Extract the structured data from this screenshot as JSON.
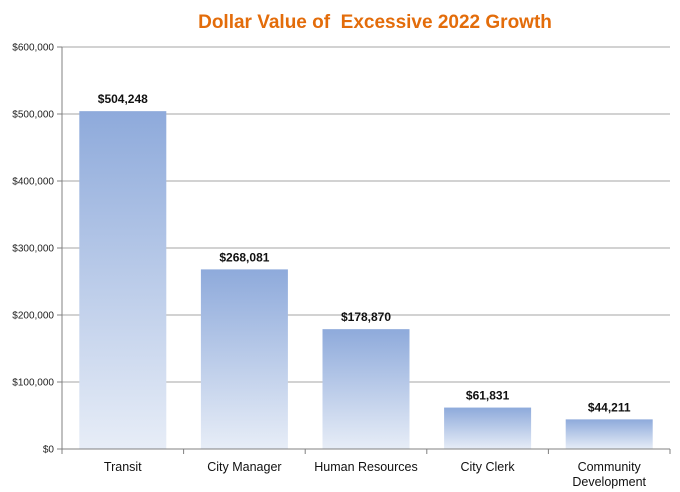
{
  "chart_data": {
    "type": "bar",
    "title": "Dollar Value of  Excessive 2022 Growth",
    "xlabel": "",
    "ylabel": "",
    "categories": [
      [
        "Transit"
      ],
      [
        "City Manager"
      ],
      [
        "Human Resources"
      ],
      [
        "City Clerk"
      ],
      [
        "Community",
        "Development"
      ]
    ],
    "values": [
      504248,
      268081,
      178870,
      61831,
      44211
    ],
    "data_labels": [
      "$504,248",
      "$268,081",
      "$178,870",
      "$61,831",
      "$44,211"
    ],
    "ylim": [
      0,
      600000
    ],
    "y_ticks": [
      {
        "value": 0,
        "label": "$0"
      },
      {
        "value": 100000,
        "label": "$100,000"
      },
      {
        "value": 200000,
        "label": "$200,000"
      },
      {
        "value": 300000,
        "label": "$300,000"
      },
      {
        "value": 400000,
        "label": "$400,000"
      },
      {
        "value": 500000,
        "label": "$500,000"
      },
      {
        "value": 600000,
        "label": "$600,000"
      }
    ],
    "grid": true,
    "legend": "none",
    "colors": {
      "title": "#E36C0A",
      "bar_top": "#8EAADB",
      "bar_bottom": "#E7EDF7",
      "grid": "#A6A6A6",
      "axis": "#808080"
    }
  }
}
